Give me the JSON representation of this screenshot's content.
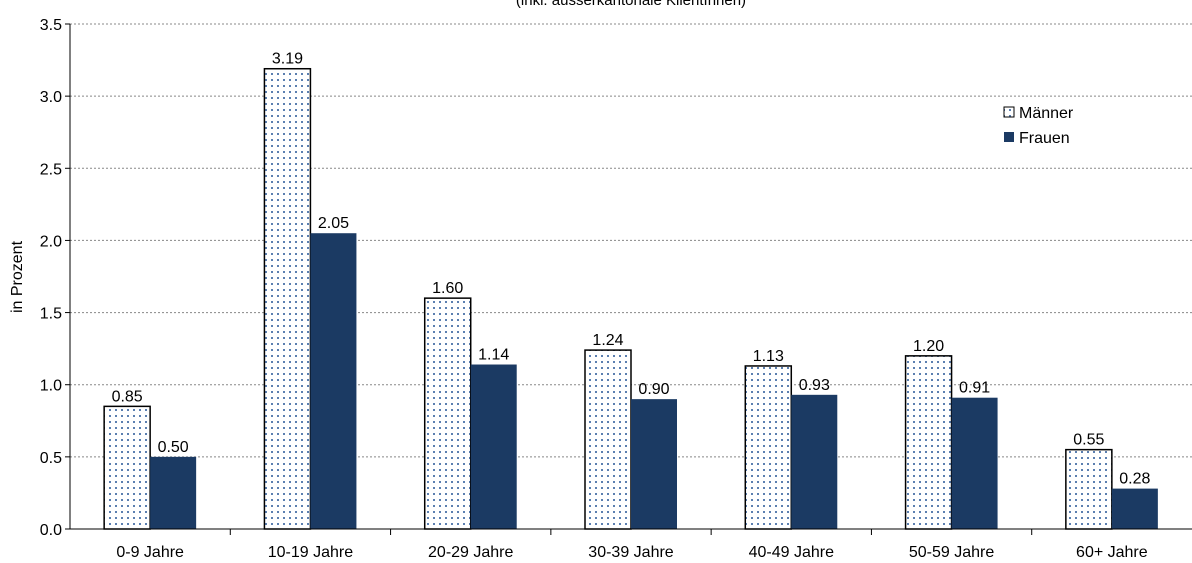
{
  "chart_data": {
    "type": "bar",
    "title": "",
    "subtitle": "(inkl. ausserkantonale KlientInnen)",
    "xlabel": "",
    "ylabel": "in Prozent",
    "ylim": [
      0,
      3.5
    ],
    "yticks": [
      "0.0",
      "0.5",
      "1.0",
      "1.5",
      "2.0",
      "2.5",
      "3.0",
      "3.5"
    ],
    "grid": true,
    "legend_position": "top-right",
    "categories": [
      "0-9 Jahre",
      "10-19 Jahre",
      "20-29 Jahre",
      "30-39 Jahre",
      "40-49 Jahre",
      "50-59 Jahre",
      "60+ Jahre"
    ],
    "series": [
      {
        "name": "Männer",
        "values": [
          0.85,
          3.19,
          1.6,
          1.24,
          1.13,
          1.2,
          0.55
        ],
        "labels": [
          "0.85",
          "3.19",
          "1.60",
          "1.24",
          "1.13",
          "1.20",
          "0.55"
        ],
        "color": "#ffffff",
        "pattern_color": "#5b7fb0"
      },
      {
        "name": "Frauen",
        "values": [
          0.5,
          2.05,
          1.14,
          0.9,
          0.93,
          0.91,
          0.28
        ],
        "labels": [
          "0.50",
          "2.05",
          "1.14",
          "0.90",
          "0.93",
          "0.91",
          "0.28"
        ],
        "color": "#1b3a63"
      }
    ]
  }
}
